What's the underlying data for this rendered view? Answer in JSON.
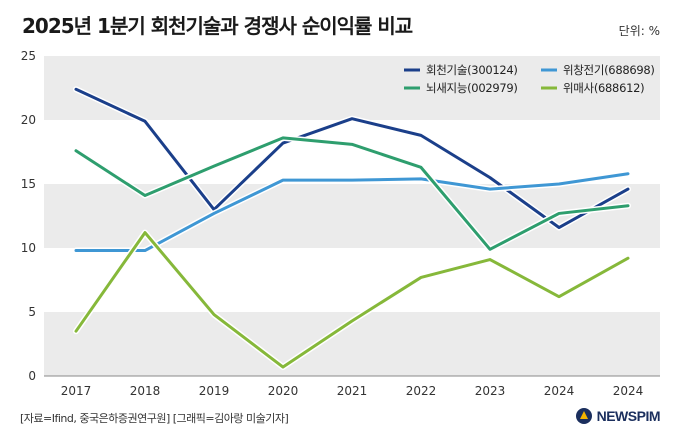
{
  "header": {
    "title": "2025년 1분기 회천기술과 경쟁사 순이익률 비교",
    "unit": "단위: %"
  },
  "footer": {
    "source": "[자료=Ifind, 중국은하증권연구원] [그래픽=김아랑 미술기자]",
    "logo_text": "NEWSPIM"
  },
  "colors": {
    "band": "#ebebeb",
    "axis": "#888888"
  },
  "chart_data": {
    "type": "line",
    "categories": [
      "2017",
      "2018",
      "2019",
      "2020",
      "2021",
      "2022",
      "2023",
      "2024",
      "2024"
    ],
    "ylim": [
      0,
      25
    ],
    "yticks": [
      0,
      5,
      10,
      15,
      20,
      25
    ],
    "legend_position": "top-right",
    "grid": "alternating horizontal bands",
    "series": [
      {
        "name": "회천기술(300124)",
        "color": "#1b3f8a",
        "values": [
          22.4,
          19.9,
          13.0,
          18.2,
          20.1,
          18.8,
          15.5,
          11.6,
          14.6
        ]
      },
      {
        "name": "위창전기(688698)",
        "color": "#3f97d4",
        "values": [
          9.8,
          9.8,
          12.7,
          15.3,
          15.3,
          15.4,
          14.6,
          15.0,
          15.8
        ]
      },
      {
        "name": "뇌새지능(002979)",
        "color": "#2e9e6e",
        "values": [
          17.6,
          14.1,
          16.4,
          18.6,
          18.1,
          16.3,
          9.9,
          12.7,
          13.3
        ]
      },
      {
        "name": "위매사(688612)",
        "color": "#86b83a",
        "values": [
          3.5,
          11.2,
          4.8,
          0.7,
          4.3,
          7.7,
          9.1,
          6.2,
          9.2
        ]
      }
    ]
  }
}
